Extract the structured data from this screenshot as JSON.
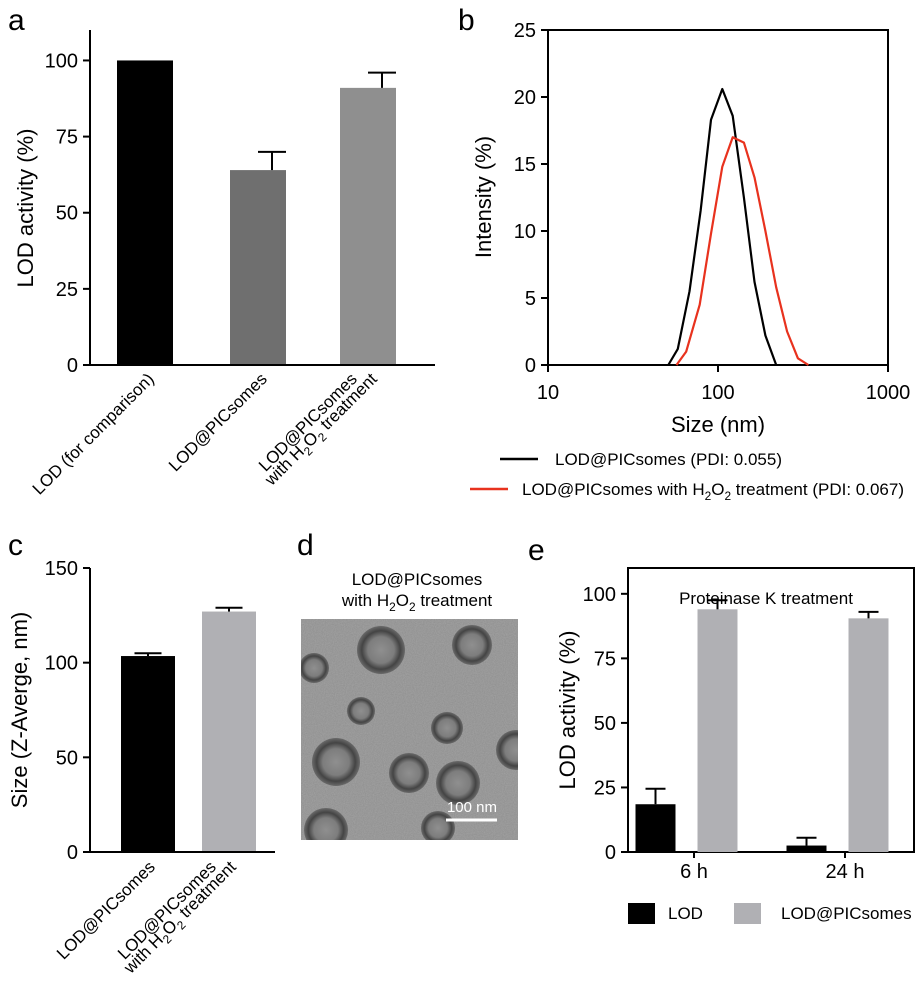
{
  "chart_data": [
    {
      "panel": "a",
      "type": "bar",
      "ylabel": "LOD activity (%)",
      "ylim": [
        0,
        110
      ],
      "yticks": [
        0,
        25,
        50,
        75,
        100
      ],
      "categories": [
        "LOD (for comparison)",
        "LOD@PICsomes",
        "LOD@PICsomes with H2O2 treatment"
      ],
      "category_lines": [
        [
          "LOD (for comparison)"
        ],
        [
          "LOD@PICsomes"
        ],
        [
          "LOD@PICsomes",
          "with H2O2 treatment"
        ]
      ],
      "values": [
        100,
        64,
        91
      ],
      "errors": [
        0,
        6,
        5
      ],
      "colors": [
        "#000000",
        "#6f6f6f",
        "#8f8f8f"
      ]
    },
    {
      "panel": "b",
      "type": "line",
      "xscale": "log",
      "xlim": [
        10,
        1000
      ],
      "ylim": [
        0,
        25
      ],
      "xticks": [
        10,
        100,
        1000
      ],
      "yticks": [
        0,
        5,
        10,
        15,
        20,
        25
      ],
      "xlabel": "Size (nm)",
      "ylabel": "Intensity (%)",
      "series": [
        {
          "name": "LOD@PICsomes (PDI: 0.055)",
          "color": "#000000",
          "x": [
            51,
            58,
            68,
            79,
            91,
            106,
            122,
            142,
            164,
            190,
            220
          ],
          "y": [
            0,
            1.2,
            5.5,
            11.5,
            18.3,
            20.6,
            18.6,
            12.5,
            6.2,
            2.2,
            0
          ]
        },
        {
          "name": "LOD@PICsomes with H2O2 treatment (PDI: 0.067)",
          "color": "#e8321e",
          "x": [
            57,
            65,
            78,
            91,
            106,
            122,
            142,
            164,
            190,
            220,
            255,
            295,
            340
          ],
          "y": [
            0,
            1.0,
            4.5,
            9.8,
            14.8,
            17.0,
            16.6,
            14.0,
            10.0,
            5.8,
            2.5,
            0.5,
            0
          ]
        }
      ]
    },
    {
      "panel": "c",
      "type": "bar",
      "ylabel": "Size (Z-Averge, nm)",
      "ylim": [
        0,
        150
      ],
      "yticks": [
        0,
        50,
        100,
        150
      ],
      "categories": [
        "LOD@PICsomes",
        "LOD@PICsomes with H2O2 treatment"
      ],
      "category_lines": [
        [
          "LOD@PICsomes"
        ],
        [
          "LOD@PICsomes",
          "with H2O2 treatment"
        ]
      ],
      "values": [
        103.5,
        127
      ],
      "errors": [
        1.5,
        2
      ],
      "colors": [
        "#000000",
        "#b0b0b4"
      ]
    },
    {
      "panel": "e",
      "type": "bar",
      "title": "Proteinase K treatment",
      "ylabel": "LOD activity (%)",
      "ylim": [
        0,
        110
      ],
      "yticks": [
        0,
        25,
        50,
        75,
        100
      ],
      "categories": [
        "6 h",
        "24 h"
      ],
      "series": [
        {
          "name": "LOD",
          "color": "#000000",
          "values": [
            18.5,
            2.5
          ],
          "errors": [
            6,
            3
          ]
        },
        {
          "name": "LOD@PICsomes",
          "color": "#b0b0b4",
          "values": [
            94,
            90.5
          ],
          "errors": [
            3.5,
            2.5
          ]
        }
      ]
    }
  ],
  "panel_d": {
    "label": "d",
    "caption_line1": "LOD@PICsomes",
    "caption_line2": "with H2O2 treatment",
    "scale_bar": "100 nm"
  }
}
